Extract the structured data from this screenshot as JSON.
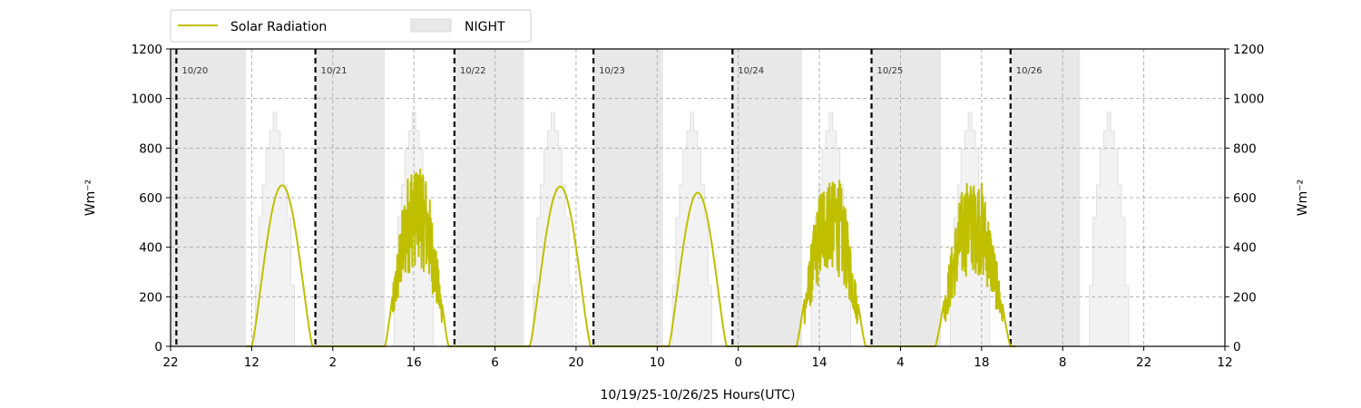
{
  "chart_data": {
    "type": "line",
    "xlabel": "10/19/25-10/26/25  Hours(UTC)",
    "ylabel": "Wm⁻²",
    "ylabel_right": "Wm⁻²",
    "ylim": [
      0,
      1200
    ],
    "yticks": [
      0,
      200,
      400,
      600,
      800,
      1000,
      1200
    ],
    "x_unit": "hours since 10/19/25 22:00 UTC",
    "xlim": [
      0,
      182
    ],
    "xticks": [
      {
        "x": 0,
        "label": "22"
      },
      {
        "x": 14,
        "label": "12"
      },
      {
        "x": 28,
        "label": "2"
      },
      {
        "x": 42,
        "label": "16"
      },
      {
        "x": 56,
        "label": "6"
      },
      {
        "x": 70,
        "label": "20"
      },
      {
        "x": 84,
        "label": "10"
      },
      {
        "x": 98,
        "label": "0"
      },
      {
        "x": 112,
        "label": "14"
      },
      {
        "x": 126,
        "label": "4"
      },
      {
        "x": 140,
        "label": "18"
      },
      {
        "x": 154,
        "label": "8"
      },
      {
        "x": 168,
        "label": "22"
      },
      {
        "x": 182,
        "label": "12"
      }
    ],
    "grid": true,
    "legend": {
      "placement": "top-left-outside",
      "entries": [
        {
          "label": "Solar Radiation",
          "color": "#bfbf00",
          "kind": "line"
        },
        {
          "label": "NIGHT",
          "color": "#e8e8e8",
          "kind": "patch"
        }
      ]
    },
    "day_markers": [
      {
        "x": 1,
        "label": "10/20"
      },
      {
        "x": 25,
        "label": "10/21"
      },
      {
        "x": 49,
        "label": "10/22"
      },
      {
        "x": 73,
        "label": "10/23"
      },
      {
        "x": 97,
        "label": "10/24"
      },
      {
        "x": 121,
        "label": "10/25"
      },
      {
        "x": 145,
        "label": "10/26"
      }
    ],
    "night_periods": [
      [
        0,
        13
      ],
      [
        25,
        37
      ],
      [
        49,
        61
      ],
      [
        73,
        85
      ],
      [
        97,
        109
      ],
      [
        121,
        133
      ],
      [
        145,
        157
      ]
    ],
    "clear_sky_peak": 945,
    "clear_sky_windows": [
      [
        14,
        22
      ],
      [
        38,
        46
      ],
      [
        62,
        70
      ],
      [
        86,
        94
      ],
      [
        110,
        118
      ],
      [
        134,
        142
      ],
      [
        158,
        166
      ]
    ],
    "series": [
      {
        "name": "Solar Radiation",
        "color": "#bfbf00",
        "days": [
          {
            "start": 14,
            "end": 24.5,
            "peak": 650,
            "shape": "smooth"
          },
          {
            "start": 37,
            "end": 48,
            "peak": 720,
            "shape": "cloudy"
          },
          {
            "start": 62,
            "end": 72.5,
            "peak": 645,
            "shape": "smooth"
          },
          {
            "start": 86,
            "end": 96,
            "peak": 620,
            "shape": "smooth"
          },
          {
            "start": 108,
            "end": 120,
            "peak": 675,
            "shape": "cloudy"
          },
          {
            "start": 132,
            "end": 145,
            "peak": 660,
            "shape": "cloudy"
          }
        ]
      }
    ]
  }
}
